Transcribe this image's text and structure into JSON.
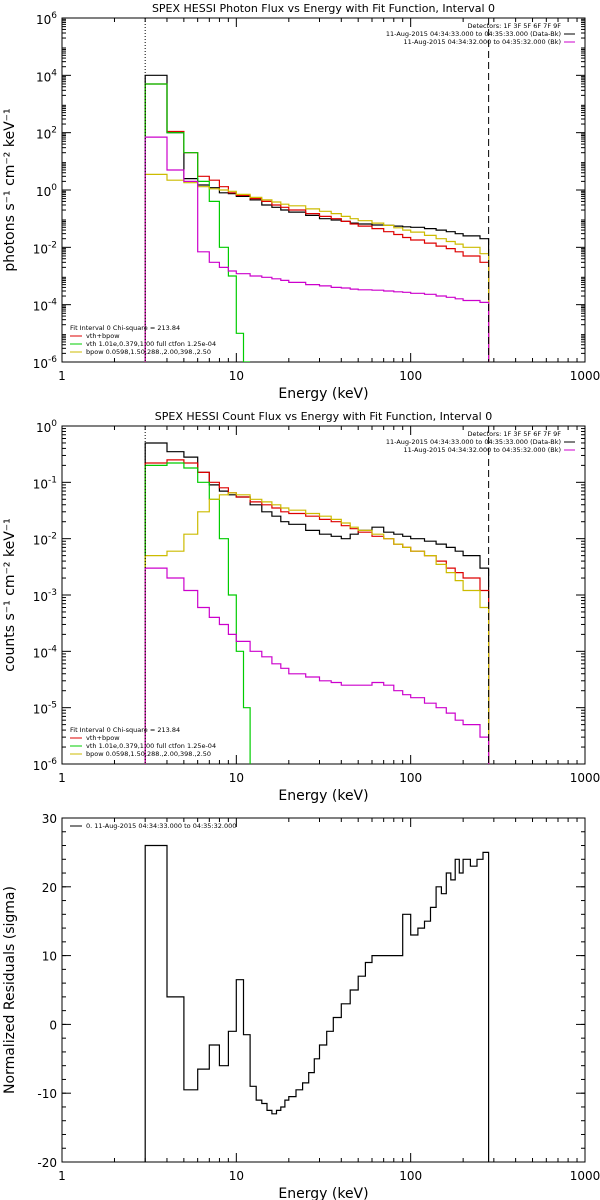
{
  "chart_data": [
    {
      "type": "line",
      "title": "SPEX HESSI Photon Flux vs Energy with Fit Function, Interval 0",
      "xlabel": "Energy (keV)",
      "ylabel": "photons s⁻¹ cm⁻² keV⁻¹",
      "xscale": "log",
      "yscale": "log",
      "xlim": [
        1,
        1000
      ],
      "ylim": [
        1e-06,
        1000000.0
      ],
      "x_ticks": [
        {
          "v": 1,
          "label": "1"
        },
        {
          "v": 10,
          "label": "10"
        },
        {
          "v": 100,
          "label": "100"
        },
        {
          "v": 1000,
          "label": "1000"
        }
      ],
      "y_ticks": [
        {
          "v": 1e-06,
          "base": "10",
          "exp": "-6"
        },
        {
          "v": 0.0001,
          "base": "10",
          "exp": "-4"
        },
        {
          "v": 0.01,
          "base": "10",
          "exp": "-2"
        },
        {
          "v": 1,
          "base": "10",
          "exp": "0"
        },
        {
          "v": 100,
          "base": "10",
          "exp": "2"
        },
        {
          "v": 10000,
          "base": "10",
          "exp": "4"
        },
        {
          "v": 1000000,
          "base": "10",
          "exp": "6"
        }
      ],
      "vlines": [
        {
          "x": 3,
          "style": "dotted"
        },
        {
          "x": 280,
          "style": "dashed"
        }
      ],
      "legend_top": [
        {
          "text": "Detectors: 1F 3F 5F 6F 7F 9F",
          "line_color": ""
        },
        {
          "text": "11-Aug-2015 04:34:33.000 to 04:35:33.000 (Data-Bk)",
          "line_color": "#000000"
        },
        {
          "text": "11-Aug-2015 04:34:32.000 to 04:35:32.000 (Bk)",
          "line_color": "#cc00cc"
        }
      ],
      "legend_bottom": {
        "header": "Fit Interval 0   Chi-square = 213.84",
        "items": [
          {
            "text": "vth+bpow",
            "color": "#dd0000"
          },
          {
            "text": "vth 1.01e,0.379,1.00  full ctfon 1.25e-04",
            "color": "#00cc00"
          },
          {
            "text": "bpow 0.0598,1.50,288.,2.00,398.,2.50",
            "color": "#ccbb00"
          }
        ]
      },
      "series": [
        {
          "color": "#000000",
          "edges": [
            3,
            3.5,
            4,
            5,
            6,
            7,
            8,
            9,
            10,
            12,
            14,
            16,
            18,
            20,
            25,
            30,
            35,
            40,
            45,
            50,
            60,
            70,
            80,
            90,
            100,
            120,
            140,
            160,
            180,
            200,
            250,
            280
          ],
          "values": [
            10000,
            10000,
            100,
            2.5,
            1.5,
            1.2,
            0.8,
            0.75,
            0.6,
            0.45,
            0.3,
            0.25,
            0.2,
            0.17,
            0.13,
            0.1,
            0.09,
            0.08,
            0.07,
            0.065,
            0.06,
            0.058,
            0.055,
            0.052,
            0.05,
            0.045,
            0.04,
            0.035,
            0.03,
            0.025,
            0.02
          ]
        },
        {
          "color": "#dd0000",
          "edges": [
            3,
            3.5,
            4,
            5,
            6,
            7,
            8,
            9,
            10,
            12,
            14,
            16,
            18,
            20,
            25,
            30,
            35,
            40,
            45,
            50,
            60,
            70,
            80,
            90,
            100,
            120,
            140,
            160,
            180,
            200,
            250,
            280
          ],
          "values": [
            5000,
            5000,
            110,
            20,
            3,
            2.2,
            1.3,
            0.8,
            0.65,
            0.5,
            0.4,
            0.3,
            0.25,
            0.2,
            0.15,
            0.12,
            0.1,
            0.08,
            0.065,
            0.055,
            0.045,
            0.035,
            0.028,
            0.022,
            0.018,
            0.014,
            0.011,
            0.009,
            0.007,
            0.005,
            0.003
          ]
        },
        {
          "color": "#00cc00",
          "edges": [
            3,
            3.5,
            4,
            5,
            6,
            7,
            8,
            9,
            10,
            11,
            12
          ],
          "values": [
            5000,
            5000,
            100,
            20,
            2,
            0.4,
            0.01,
            0.001,
            1e-05,
            1e-06
          ]
        },
        {
          "color": "#ccbb00",
          "edges": [
            3,
            3.5,
            4,
            5,
            6,
            7,
            8,
            9,
            10,
            12,
            14,
            16,
            18,
            20,
            25,
            30,
            35,
            40,
            45,
            50,
            60,
            70,
            80,
            90,
            100,
            120,
            140,
            160,
            180,
            200,
            250,
            280
          ],
          "values": [
            3.5,
            3.5,
            2.2,
            1.8,
            1.3,
            1.1,
            1.0,
            0.9,
            0.7,
            0.55,
            0.45,
            0.38,
            0.32,
            0.28,
            0.22,
            0.18,
            0.15,
            0.12,
            0.1,
            0.085,
            0.07,
            0.058,
            0.048,
            0.04,
            0.034,
            0.026,
            0.02,
            0.016,
            0.013,
            0.01,
            0.006
          ]
        },
        {
          "color": "#cc00cc",
          "edges": [
            3,
            3.5,
            4,
            5,
            6,
            7,
            8,
            9,
            10,
            12,
            14,
            16,
            18,
            20,
            25,
            30,
            35,
            40,
            45,
            50,
            60,
            70,
            80,
            90,
            100,
            120,
            140,
            160,
            180,
            200,
            250,
            280
          ],
          "values": [
            70,
            70,
            5,
            2,
            0.007,
            0.003,
            0.002,
            0.0015,
            0.0012,
            0.001,
            0.0009,
            0.0008,
            0.0007,
            0.0006,
            0.0005,
            0.00045,
            0.0004,
            0.00038,
            0.00035,
            0.00033,
            0.00032,
            0.0003,
            0.00028,
            0.00027,
            0.00025,
            0.00023,
            0.0002,
            0.00018,
            0.00016,
            0.00014,
            0.00012
          ]
        }
      ]
    },
    {
      "type": "line",
      "title": "SPEX HESSI Count Flux vs Energy with Fit Function, Interval 0",
      "xlabel": "Energy (keV)",
      "ylabel": "counts s⁻¹ cm⁻² keV⁻¹",
      "xscale": "log",
      "yscale": "log",
      "xlim": [
        1,
        1000
      ],
      "ylim": [
        1e-06,
        1
      ],
      "x_ticks": [
        {
          "v": 1,
          "label": "1"
        },
        {
          "v": 10,
          "label": "10"
        },
        {
          "v": 100,
          "label": "100"
        },
        {
          "v": 1000,
          "label": "1000"
        }
      ],
      "y_ticks": [
        {
          "v": 1e-06,
          "base": "10",
          "exp": "-6"
        },
        {
          "v": 1e-05,
          "base": "10",
          "exp": "-5"
        },
        {
          "v": 0.0001,
          "base": "10",
          "exp": "-4"
        },
        {
          "v": 0.001,
          "base": "10",
          "exp": "-3"
        },
        {
          "v": 0.01,
          "base": "10",
          "exp": "-2"
        },
        {
          "v": 0.1,
          "base": "10",
          "exp": "-1"
        },
        {
          "v": 1,
          "base": "10",
          "exp": "0"
        }
      ],
      "vlines": [
        {
          "x": 3,
          "style": "dotted"
        },
        {
          "x": 280,
          "style": "dashed"
        }
      ],
      "legend_top": [
        {
          "text": "Detectors: 1F 3F 5F 6F 7F 9F",
          "line_color": ""
        },
        {
          "text": "11-Aug-2015 04:34:33.000 to 04:35:33.000 (Data-Bk)",
          "line_color": "#000000"
        },
        {
          "text": "11-Aug-2015 04:34:32.000 to 04:35:32.000 (Bk)",
          "line_color": "#cc00cc"
        }
      ],
      "legend_bottom": {
        "header": "Fit Interval 0   Chi-square = 213.84",
        "items": [
          {
            "text": "vth+bpow",
            "color": "#dd0000"
          },
          {
            "text": "vth 1.01e,0.379,1.00  full ctfon 1.25e-04",
            "color": "#00cc00"
          },
          {
            "text": "bpow 0.0598,1.50,288.,2.00,398.,2.50",
            "color": "#ccbb00"
          }
        ]
      },
      "series": [
        {
          "color": "#000000",
          "edges": [
            3,
            3.5,
            4,
            5,
            6,
            7,
            8,
            9,
            10,
            12,
            14,
            16,
            18,
            20,
            25,
            30,
            35,
            40,
            45,
            50,
            60,
            70,
            80,
            90,
            100,
            120,
            140,
            160,
            180,
            200,
            250,
            280
          ],
          "values": [
            0.5,
            0.5,
            0.35,
            0.28,
            0.15,
            0.09,
            0.07,
            0.06,
            0.055,
            0.04,
            0.03,
            0.025,
            0.02,
            0.018,
            0.014,
            0.012,
            0.011,
            0.01,
            0.012,
            0.014,
            0.016,
            0.013,
            0.012,
            0.011,
            0.01,
            0.009,
            0.008,
            0.007,
            0.006,
            0.005,
            0.003
          ]
        },
        {
          "color": "#dd0000",
          "edges": [
            3,
            3.5,
            4,
            5,
            6,
            7,
            8,
            9,
            10,
            12,
            14,
            16,
            18,
            20,
            25,
            30,
            35,
            40,
            45,
            50,
            60,
            70,
            80,
            90,
            100,
            120,
            140,
            160,
            180,
            200,
            250,
            280
          ],
          "values": [
            0.22,
            0.22,
            0.25,
            0.22,
            0.15,
            0.1,
            0.08,
            0.065,
            0.055,
            0.045,
            0.04,
            0.035,
            0.03,
            0.028,
            0.025,
            0.022,
            0.02,
            0.017,
            0.015,
            0.013,
            0.011,
            0.01,
            0.008,
            0.007,
            0.006,
            0.005,
            0.004,
            0.003,
            0.0025,
            0.002,
            0.0012
          ]
        },
        {
          "color": "#00cc00",
          "edges": [
            3,
            3.5,
            4,
            5,
            6,
            7,
            8,
            9,
            10,
            11,
            12
          ],
          "values": [
            0.2,
            0.2,
            0.22,
            0.18,
            0.1,
            0.05,
            0.01,
            0.001,
            0.0001,
            1e-05
          ]
        },
        {
          "color": "#ccbb00",
          "edges": [
            3,
            3.5,
            4,
            5,
            6,
            7,
            8,
            9,
            10,
            12,
            14,
            16,
            18,
            20,
            25,
            30,
            35,
            40,
            45,
            50,
            60,
            70,
            80,
            90,
            100,
            120,
            140,
            160,
            180,
            200,
            250,
            280
          ],
          "values": [
            0.005,
            0.005,
            0.006,
            0.012,
            0.03,
            0.05,
            0.06,
            0.065,
            0.06,
            0.05,
            0.045,
            0.04,
            0.035,
            0.032,
            0.028,
            0.025,
            0.022,
            0.019,
            0.016,
            0.014,
            0.012,
            0.01,
            0.008,
            0.007,
            0.006,
            0.005,
            0.0035,
            0.0025,
            0.0018,
            0.0012,
            0.0006
          ]
        },
        {
          "color": "#cc00cc",
          "edges": [
            3,
            3.5,
            4,
            5,
            6,
            7,
            8,
            9,
            10,
            12,
            14,
            16,
            18,
            20,
            25,
            30,
            35,
            40,
            45,
            50,
            60,
            70,
            80,
            90,
            100,
            120,
            140,
            160,
            180,
            200,
            250,
            280
          ],
          "values": [
            0.003,
            0.003,
            0.002,
            0.0012,
            0.0006,
            0.0004,
            0.0003,
            0.0002,
            0.00015,
            0.0001,
            8e-05,
            6e-05,
            5e-05,
            4e-05,
            3.5e-05,
            3e-05,
            2.8e-05,
            2.5e-05,
            2.5e-05,
            2.5e-05,
            2.8e-05,
            2.5e-05,
            2e-05,
            1.7e-05,
            1.5e-05,
            1.2e-05,
            1e-05,
            8e-06,
            6e-06,
            5e-06,
            3e-06
          ]
        }
      ]
    },
    {
      "type": "line",
      "title": "",
      "xlabel": "Energy (keV)",
      "ylabel": "Normalized Residuals (sigma)",
      "xscale": "log",
      "yscale": "linear",
      "xlim": [
        1,
        1000
      ],
      "ylim": [
        -20,
        30
      ],
      "x_ticks": [
        {
          "v": 1,
          "label": "1"
        },
        {
          "v": 10,
          "label": "10"
        },
        {
          "v": 100,
          "label": "100"
        },
        {
          "v": 1000,
          "label": "1000"
        }
      ],
      "y_ticks": [
        {
          "v": -20,
          "label": "-20"
        },
        {
          "v": -10,
          "label": "-10"
        },
        {
          "v": 0,
          "label": "0"
        },
        {
          "v": 10,
          "label": "10"
        },
        {
          "v": 20,
          "label": "20"
        },
        {
          "v": 30,
          "label": "30"
        }
      ],
      "legend_top": [
        {
          "text": "0. 11-Aug-2015 04:34:33.000 to 04:35:32.000",
          "line_color": "#000000"
        }
      ],
      "series": [
        {
          "color": "#000000",
          "edges": [
            3,
            3.5,
            4,
            5,
            6,
            7,
            8,
            9,
            10,
            11,
            12,
            13,
            14,
            15,
            16,
            17,
            18,
            19,
            20,
            22,
            24,
            26,
            28,
            30,
            33,
            36,
            40,
            45,
            50,
            55,
            60,
            70,
            80,
            90,
            100,
            110,
            120,
            130,
            140,
            150,
            160,
            170,
            180,
            190,
            200,
            220,
            240,
            260,
            280
          ],
          "values": [
            26,
            26,
            4,
            -9.5,
            -6.5,
            -3,
            -6,
            -1,
            6.5,
            -1.5,
            -9,
            -11,
            -11.5,
            -12.5,
            -13,
            -12.5,
            -12,
            -11,
            -10.5,
            -9.5,
            -8.5,
            -7,
            -5,
            -3,
            -1,
            1,
            3,
            5,
            7,
            9,
            10,
            10,
            10,
            16,
            13,
            14,
            15,
            17,
            20,
            19,
            22,
            21,
            24,
            22,
            24,
            23,
            24,
            25
          ]
        }
      ]
    }
  ]
}
